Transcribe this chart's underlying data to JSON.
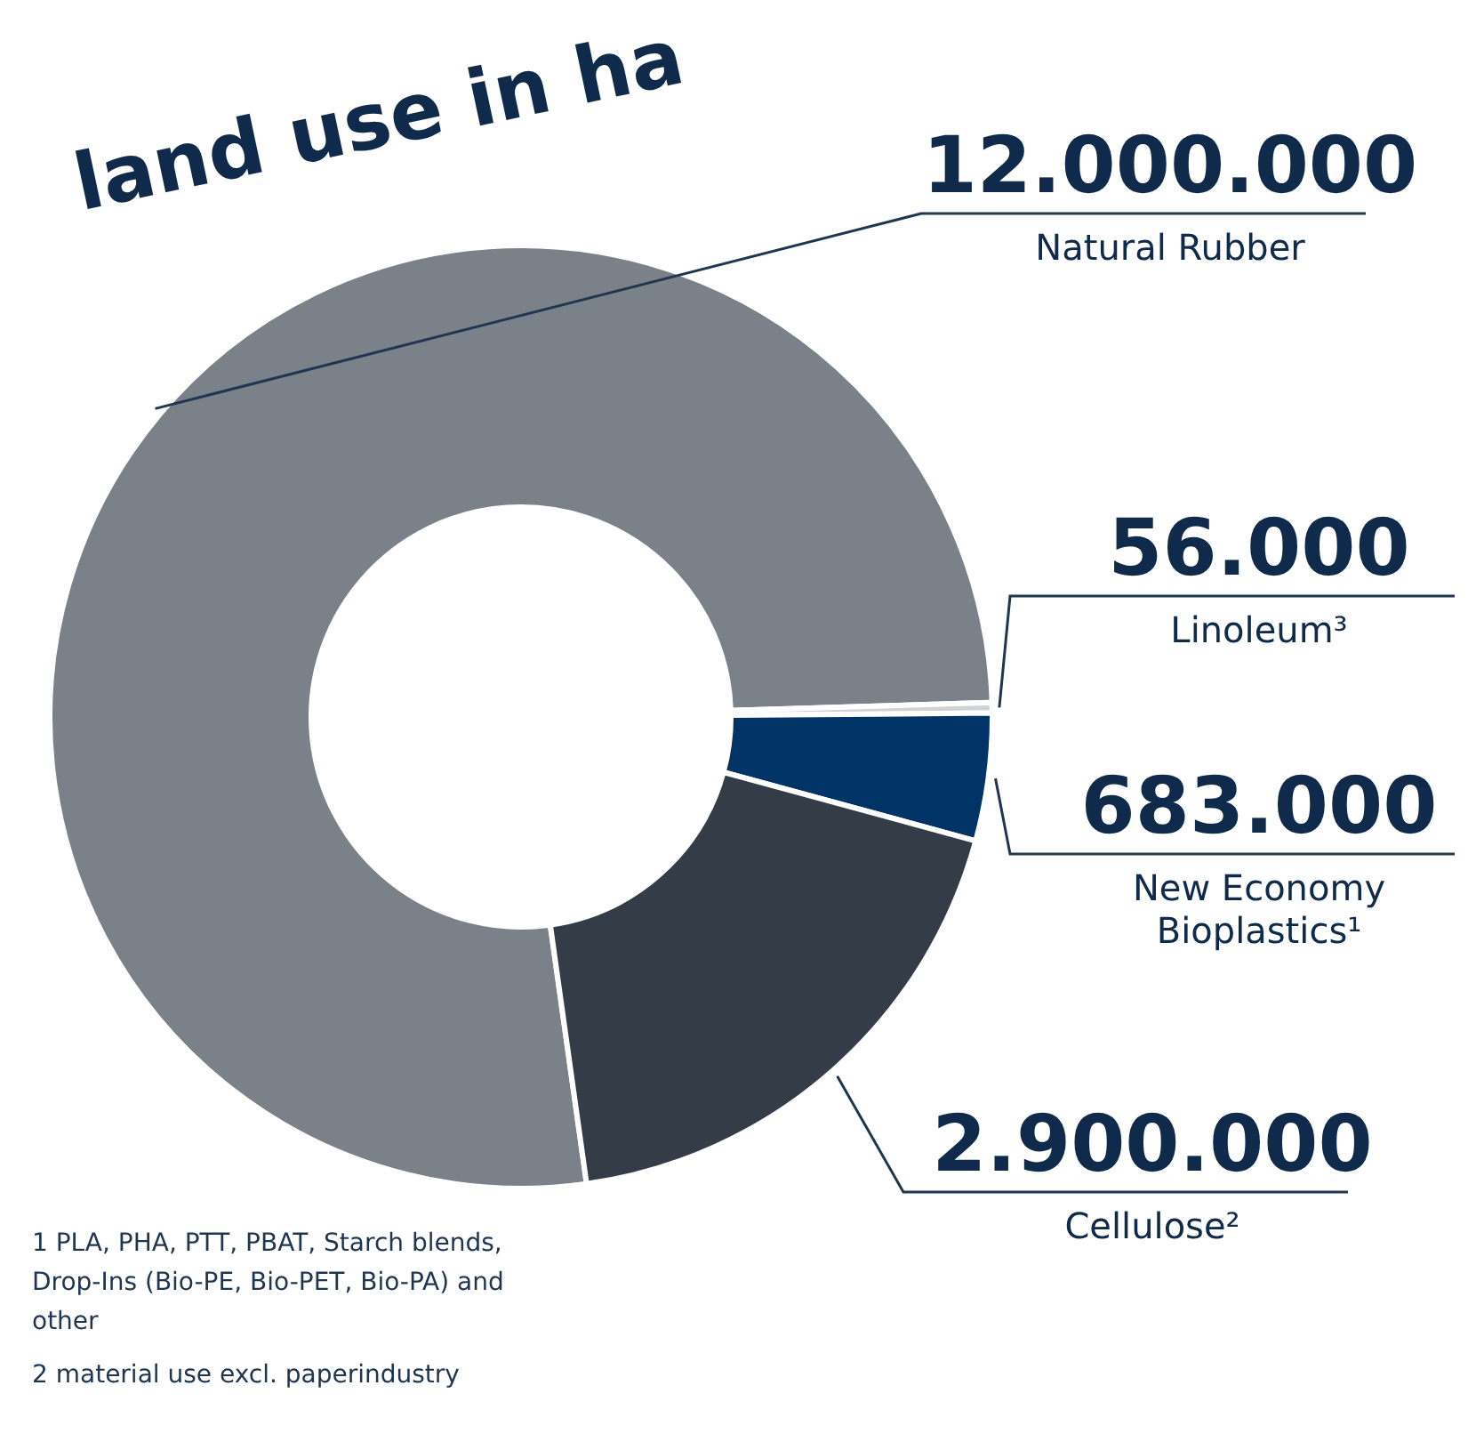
{
  "chart_data": {
    "type": "donut",
    "title": "land use in ha",
    "categories": [
      "Natural Rubber",
      "Linoleum³",
      "New Economy Bioplastics¹",
      "Cellulose²"
    ],
    "values": [
      12000000,
      56000,
      683000,
      2900000
    ],
    "value_labels": [
      "12.000.000",
      "56.000",
      "683.000",
      "2.900.000"
    ],
    "colors": [
      "#7b8188",
      "#d0d2d4",
      "#003366",
      "#343d47"
    ],
    "legend": false,
    "annotations": [
      "1 PLA, PHA, PTT, PBAT, Starch blends, Drop-Ins (Bio-PE, Bio-PET, Bio-PA) and other",
      "2 material use excl. paperindustry"
    ]
  }
}
